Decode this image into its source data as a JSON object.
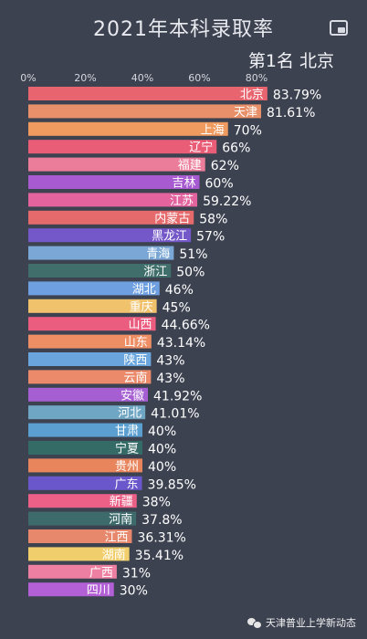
{
  "header": {
    "title": "2021年本科录取率",
    "rank_label": "第1名 北京"
  },
  "watermark": {
    "text": "天津普业上学新动态",
    "icon": "wechat-icon"
  },
  "chart_data": {
    "type": "bar",
    "orientation": "horizontal",
    "title": "2021年本科录取率",
    "xlim": [
      0,
      80
    ],
    "x_ticks": [
      "0%",
      "20%",
      "40%",
      "60%",
      "80%"
    ],
    "grid": false,
    "legend": "none",
    "categories": [
      "北京",
      "天津",
      "上海",
      "辽宁",
      "福建",
      "吉林",
      "江苏",
      "内蒙古",
      "黑龙江",
      "青海",
      "浙江",
      "湖北",
      "重庆",
      "山西",
      "山东",
      "陕西",
      "云南",
      "安徽",
      "河北",
      "甘肃",
      "宁夏",
      "贵州",
      "广东",
      "新疆",
      "河南",
      "江西",
      "湖南",
      "广西",
      "四川"
    ],
    "values": [
      83.79,
      81.61,
      70,
      66,
      62,
      60,
      59.22,
      58,
      57,
      51,
      50,
      46,
      45,
      44.66,
      43.14,
      43,
      43,
      41.92,
      41.01,
      40,
      40,
      40,
      39.85,
      38,
      37.8,
      36.31,
      35.41,
      31,
      30
    ],
    "value_labels": [
      "83.79%",
      "81.61%",
      "70%",
      "66%",
      "62%",
      "60%",
      "59.22%",
      "58%",
      "57%",
      "51%",
      "50%",
      "46%",
      "45%",
      "44.66%",
      "43.14%",
      "43%",
      "43%",
      "41.92%",
      "41.01%",
      "40%",
      "40%",
      "40%",
      "39.85%",
      "38%",
      "37.8%",
      "36.31%",
      "35.41%",
      "31%",
      "30%"
    ],
    "colors": [
      "#e8646e",
      "#e8906a",
      "#ef9a5e",
      "#ea5d77",
      "#ec7d9a",
      "#a85ad0",
      "#e3639f",
      "#e56a6c",
      "#7457c8",
      "#7ba7d6",
      "#3f6e6b",
      "#6e9fe0",
      "#efc26b",
      "#ea5d7f",
      "#ee8e65",
      "#6aa6dd",
      "#ea8a6a",
      "#a65fd2",
      "#6ea6c4",
      "#5a9fd0",
      "#356b67",
      "#e9855d",
      "#6b57cc",
      "#ec5f86",
      "#3d6a6b",
      "#e7876b",
      "#f1ce6c",
      "#ec7fa2",
      "#b35fd6"
    ]
  }
}
